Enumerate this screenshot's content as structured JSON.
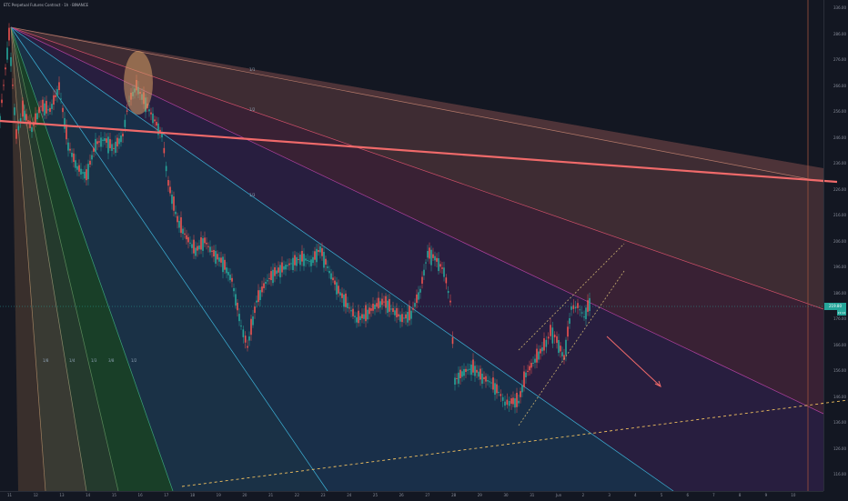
{
  "symbol": {
    "title": "ETC Perpetual Futures Contract · 1h · BINANCE"
  },
  "price_scale": {
    "labels": [
      "336.00",
      "286.00",
      "276.00",
      "266.00",
      "256.00",
      "246.00",
      "236.00",
      "226.00",
      "216.00",
      "206.00",
      "196.00",
      "186.00",
      "176.00",
      "166.00",
      "156.00",
      "146.00",
      "136.00",
      "126.00",
      "116.00"
    ],
    "current_price": "219.80",
    "countdown": "22:14",
    "current_color": "#26a69a"
  },
  "time_axis": {
    "labels": [
      "11",
      "12",
      "13",
      "14",
      "15",
      "16",
      "17",
      "18",
      "19",
      "20",
      "21",
      "22",
      "23",
      "24",
      "25",
      "26",
      "27",
      "28",
      "29",
      "30",
      "31",
      "Jun",
      "2",
      "3",
      "4",
      "5",
      "6",
      "7",
      "8",
      "9",
      "10"
    ]
  },
  "fan_labels": {
    "bottom": [
      "1/8",
      "1/4",
      "1/3",
      "3/8",
      "1/2"
    ],
    "top": [
      "1/1",
      "1/2",
      "1/3"
    ]
  },
  "colors": {
    "background": "#131722",
    "up_candle": "#26a69a",
    "down_candle": "#ef5350",
    "trend_line": "#f06a6a",
    "highlight_ellipse": "#d9a066"
  }
}
